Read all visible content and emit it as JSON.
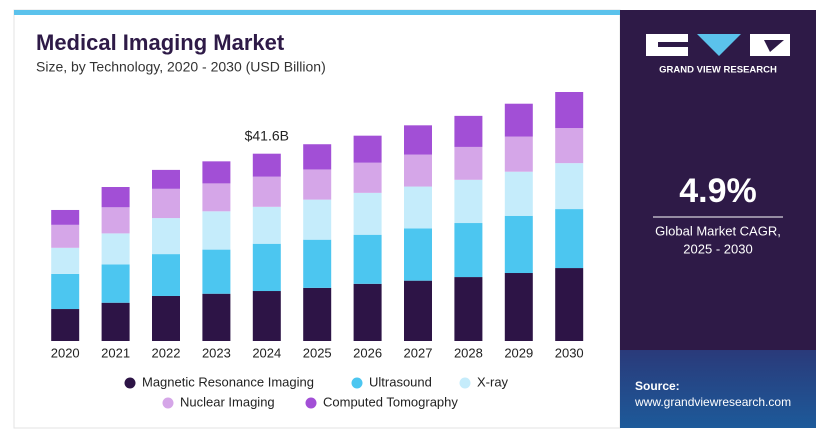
{
  "chart_data": {
    "type": "stacked-bar",
    "title": "Medical Imaging Market",
    "subtitle": "Size, by Technology, 2020 - 2030 (USD Billion)",
    "categories": [
      "2020",
      "2021",
      "2022",
      "2023",
      "2024",
      "2025",
      "2026",
      "2027",
      "2028",
      "2029",
      "2030"
    ],
    "series": [
      {
        "name": "Magnetic Resonance Imaging",
        "color": "#2d1446",
        "values": [
          7.1,
          8.5,
          10.0,
          10.5,
          11.1,
          11.8,
          12.7,
          13.4,
          14.2,
          15.1,
          16.2
        ]
      },
      {
        "name": "Ultrasound",
        "color": "#4cc6f0",
        "values": [
          7.8,
          8.5,
          9.3,
          9.8,
          10.5,
          10.7,
          10.9,
          11.6,
          12.0,
          12.7,
          13.1
        ]
      },
      {
        "name": "X-ray",
        "color": "#c5ecfb",
        "values": [
          5.8,
          6.9,
          8.0,
          8.5,
          8.2,
          8.9,
          9.3,
          9.3,
          9.6,
          9.8,
          10.2
        ]
      },
      {
        "name": "Nuclear Imaging",
        "color": "#d5a6e8",
        "values": [
          5.1,
          5.8,
          6.5,
          6.2,
          6.7,
          6.7,
          6.7,
          7.1,
          7.3,
          7.8,
          7.8
        ]
      },
      {
        "name": "Computed Tomography",
        "color": "#a24fd6",
        "values": [
          3.3,
          4.5,
          4.2,
          4.9,
          5.1,
          5.6,
          6.0,
          6.5,
          6.9,
          7.3,
          8.0
        ]
      }
    ],
    "annotations": [
      {
        "text": "$41.6B",
        "x": "2024"
      }
    ]
  },
  "sidebar": {
    "brand": "GRAND VIEW RESEARCH",
    "cagr": "4.9%",
    "cagr_label_1": "Global Market CAGR,",
    "cagr_label_2": "2025 - 2030",
    "source_label": "Source:",
    "source_url": "www.grandviewresearch.com"
  }
}
